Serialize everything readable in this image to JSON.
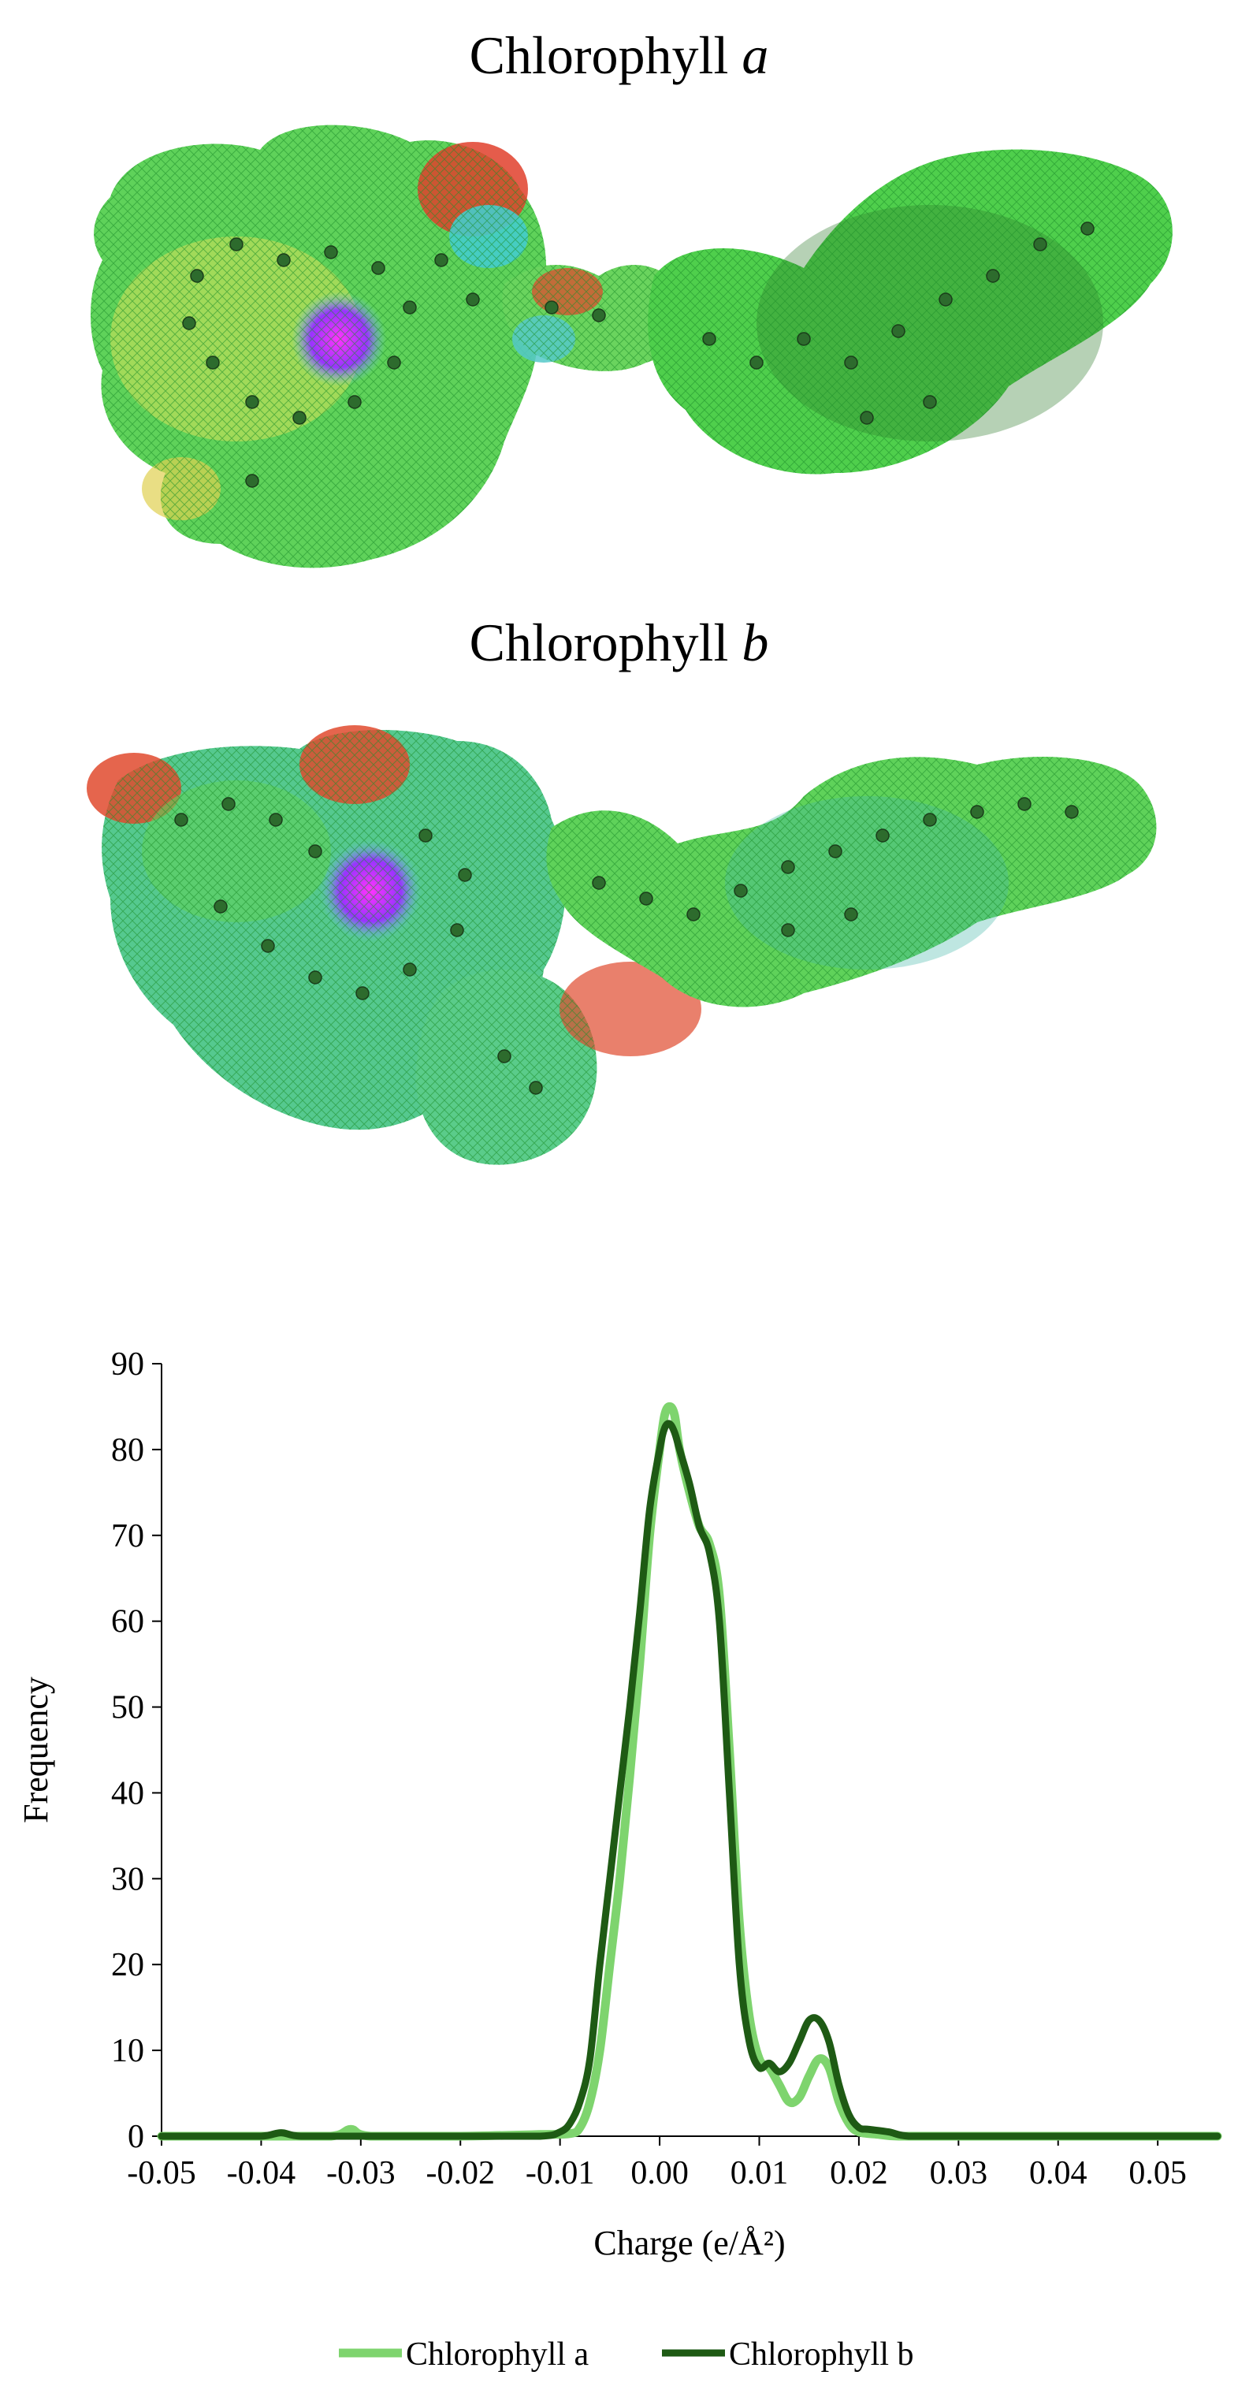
{
  "figure": {
    "molecule_a": {
      "name": "Chlorophyll",
      "variant": "a"
    },
    "molecule_b": {
      "name": "Chlorophyll",
      "variant": "b"
    }
  },
  "chart_data": {
    "type": "line",
    "title": "",
    "xlabel": "Charge (e/Å²)",
    "ylabel": "Frequency",
    "xlim": [
      -0.05,
      0.056
    ],
    "ylim": [
      0,
      90
    ],
    "xticks": [
      -0.05,
      -0.04,
      -0.03,
      -0.02,
      -0.01,
      0.0,
      0.01,
      0.02,
      0.03,
      0.04,
      0.05
    ],
    "xtick_labels": [
      "-0.05",
      "-0.04",
      "-0.03",
      "-0.02",
      "-0.01",
      "0.00",
      "0.01",
      "0.02",
      "0.03",
      "0.04",
      "0.05"
    ],
    "yticks": [
      0,
      10,
      20,
      30,
      40,
      50,
      60,
      70,
      80,
      90
    ],
    "ytick_labels": [
      "0",
      "10",
      "20",
      "30",
      "40",
      "50",
      "60",
      "70",
      "80",
      "90"
    ],
    "grid": false,
    "legend": "bottom",
    "series": [
      {
        "name": "Chlorophyll a",
        "color": "#7ed46e",
        "x": [
          -0.05,
          -0.04,
          -0.033,
          -0.031,
          -0.029,
          -0.02,
          -0.012,
          -0.009,
          -0.008,
          -0.007,
          -0.006,
          -0.005,
          -0.004,
          -0.003,
          -0.002,
          -0.001,
          0.0,
          0.0005,
          0.001,
          0.0015,
          0.002,
          0.003,
          0.004,
          0.005,
          0.006,
          0.007,
          0.008,
          0.009,
          0.01,
          0.011,
          0.012,
          0.013,
          0.014,
          0.015,
          0.016,
          0.017,
          0.018,
          0.019,
          0.02,
          0.022,
          0.024,
          0.03,
          0.04,
          0.05,
          0.056
        ],
        "y": [
          0,
          0,
          0,
          0.8,
          0,
          0,
          0.2,
          0.3,
          1,
          4,
          10,
          20,
          30,
          42,
          55,
          70,
          80,
          84,
          85,
          84,
          80,
          75,
          71,
          69,
          63,
          45,
          25,
          14,
          9,
          8,
          6,
          4,
          4.5,
          7,
          9,
          8,
          4,
          1.5,
          0.5,
          0.2,
          0,
          0,
          0,
          0,
          0
        ]
      },
      {
        "name": "Chlorophyll b",
        "color": "#1e5a14",
        "x": [
          -0.05,
          -0.045,
          -0.04,
          -0.038,
          -0.036,
          -0.03,
          -0.02,
          -0.012,
          -0.01,
          -0.009,
          -0.008,
          -0.007,
          -0.006,
          -0.005,
          -0.004,
          -0.003,
          -0.002,
          -0.001,
          0.0,
          0.0005,
          0.001,
          0.0015,
          0.002,
          0.003,
          0.004,
          0.005,
          0.006,
          0.007,
          0.008,
          0.009,
          0.01,
          0.011,
          0.012,
          0.013,
          0.014,
          0.015,
          0.016,
          0.017,
          0.018,
          0.019,
          0.02,
          0.021,
          0.023,
          0.025,
          0.03,
          0.04,
          0.05,
          0.056
        ],
        "y": [
          0,
          0,
          0,
          0.4,
          0,
          0,
          0,
          0,
          0.5,
          1.5,
          4,
          9,
          20,
          30,
          40,
          50,
          61,
          73,
          80,
          82.5,
          83,
          82,
          80,
          76,
          71,
          68,
          60,
          40,
          20,
          11,
          8,
          8.5,
          7.5,
          8.5,
          11,
          13.5,
          13.5,
          11,
          6,
          2.5,
          1,
          0.8,
          0.5,
          0,
          0,
          0,
          0,
          0
        ]
      }
    ]
  }
}
